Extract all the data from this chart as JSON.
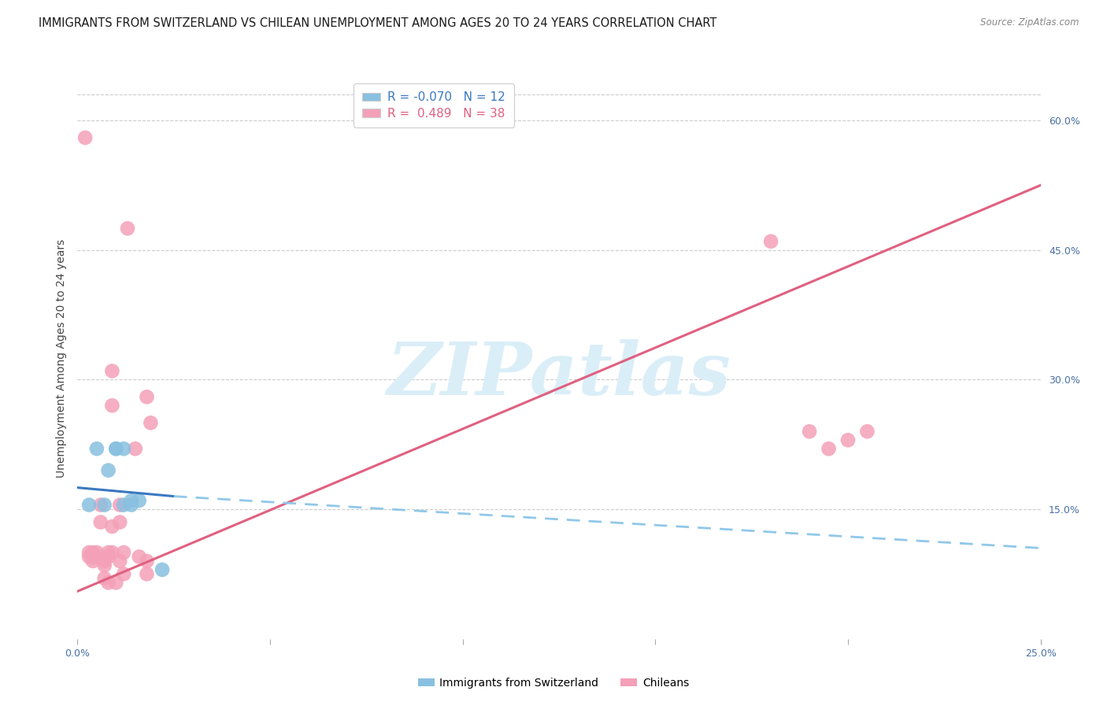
{
  "title": "IMMIGRANTS FROM SWITZERLAND VS CHILEAN UNEMPLOYMENT AMONG AGES 20 TO 24 YEARS CORRELATION CHART",
  "source": "Source: ZipAtlas.com",
  "ylabel": "Unemployment Among Ages 20 to 24 years",
  "xlim": [
    0.0,
    0.25
  ],
  "ylim": [
    0.0,
    0.65
  ],
  "x_ticks": [
    0.0,
    0.05,
    0.1,
    0.15,
    0.2,
    0.25
  ],
  "x_tick_labels": [
    "0.0%",
    "",
    "",
    "",
    "",
    "25.0%"
  ],
  "y_ticks_right": [
    0.15,
    0.3,
    0.45,
    0.6
  ],
  "y_tick_labels_right": [
    "15.0%",
    "30.0%",
    "45.0%",
    "60.0%"
  ],
  "swiss_color": "#89c0e0",
  "chilean_color": "#f4a0b8",
  "swiss_line_color": "#3a78c0",
  "chilean_line_color": "#e06080",
  "dashed_line_color": "#90c8e8",
  "background_color": "#ffffff",
  "grid_color": "#cccccc",
  "watermark_text": "ZIPatlas",
  "watermark_color": "#daeef8",
  "legend_swiss_label": "R = -0.070   N = 12",
  "legend_chilean_label": "R =  0.489   N = 38",
  "bottom_legend_swiss": "Immigrants from Switzerland",
  "bottom_legend_chilean": "Chileans",
  "swiss_points_x": [
    0.003,
    0.005,
    0.007,
    0.008,
    0.01,
    0.01,
    0.012,
    0.012,
    0.014,
    0.014,
    0.016,
    0.022
  ],
  "swiss_points_y": [
    0.155,
    0.22,
    0.155,
    0.195,
    0.22,
    0.22,
    0.22,
    0.155,
    0.16,
    0.155,
    0.16,
    0.08
  ],
  "chilean_points_x": [
    0.002,
    0.003,
    0.003,
    0.004,
    0.004,
    0.004,
    0.005,
    0.005,
    0.006,
    0.006,
    0.007,
    0.007,
    0.007,
    0.008,
    0.008,
    0.008,
    0.009,
    0.009,
    0.009,
    0.009,
    0.01,
    0.011,
    0.011,
    0.011,
    0.012,
    0.012,
    0.013,
    0.015,
    0.016,
    0.018,
    0.018,
    0.018,
    0.019,
    0.18,
    0.19,
    0.195,
    0.2,
    0.205
  ],
  "chilean_points_y": [
    0.58,
    0.1,
    0.095,
    0.1,
    0.095,
    0.09,
    0.1,
    0.095,
    0.155,
    0.135,
    0.09,
    0.085,
    0.07,
    0.1,
    0.095,
    0.065,
    0.31,
    0.27,
    0.1,
    0.13,
    0.065,
    0.155,
    0.135,
    0.09,
    0.075,
    0.1,
    0.475,
    0.22,
    0.095,
    0.28,
    0.09,
    0.075,
    0.25,
    0.46,
    0.24,
    0.22,
    0.23,
    0.24
  ],
  "pink_line_x": [
    0.0,
    0.25
  ],
  "pink_line_y": [
    0.055,
    0.525
  ],
  "blue_line_x": [
    0.0,
    0.025
  ],
  "blue_line_y": [
    0.175,
    0.165
  ],
  "dash_line_x": [
    0.025,
    0.25
  ],
  "dash_line_y": [
    0.165,
    0.105
  ]
}
